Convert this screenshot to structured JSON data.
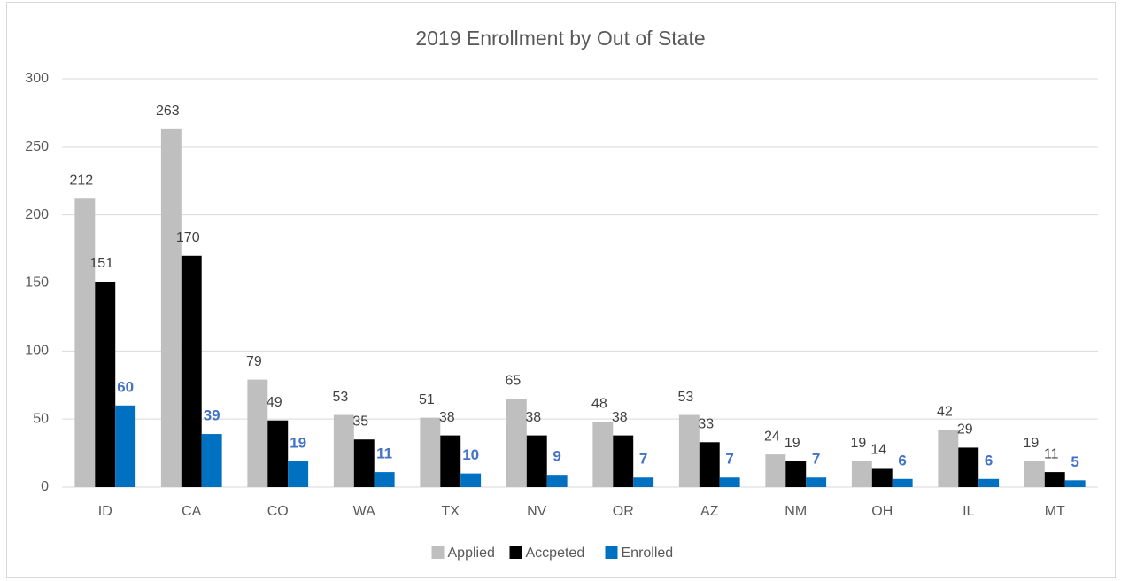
{
  "chart_data": {
    "type": "bar",
    "title": "2019 Enrollment by Out of State",
    "categories": [
      "ID",
      "CA",
      "CO",
      "WA",
      "TX",
      "NV",
      "OR",
      "AZ",
      "NM",
      "OH",
      "IL",
      "MT"
    ],
    "series": [
      {
        "name": "Applied",
        "color": "#bfbfbf",
        "values": [
          212,
          263,
          79,
          53,
          51,
          65,
          48,
          53,
          24,
          19,
          42,
          19
        ]
      },
      {
        "name": "Accpeted",
        "color": "#000000",
        "values": [
          151,
          170,
          49,
          35,
          38,
          38,
          38,
          33,
          19,
          14,
          29,
          11
        ]
      },
      {
        "name": "Enrolled",
        "color": "#0070c0",
        "values": [
          60,
          39,
          19,
          11,
          10,
          9,
          7,
          7,
          7,
          6,
          6,
          5
        ]
      }
    ],
    "ylim": [
      0,
      300
    ],
    "yticks": [
      0,
      50,
      100,
      150,
      200,
      250,
      300
    ],
    "grid": true,
    "legend": "bottom"
  }
}
